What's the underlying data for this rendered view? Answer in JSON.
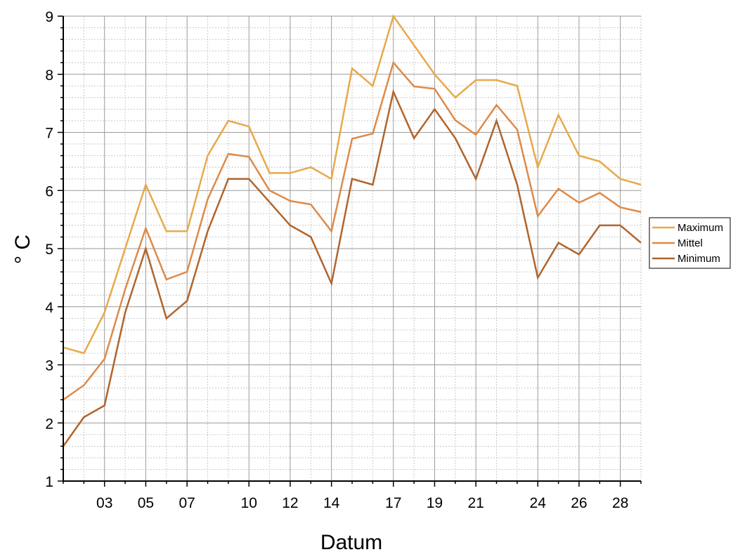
{
  "chart_data": {
    "type": "line",
    "title": "",
    "xlabel": "Datum",
    "ylabel": "° C",
    "x": [
      1,
      2,
      3,
      4,
      5,
      6,
      7,
      8,
      9,
      10,
      11,
      12,
      13,
      14,
      15,
      16,
      17,
      18,
      19,
      20,
      21,
      22,
      23,
      24,
      25,
      26,
      27,
      28,
      29
    ],
    "xlim": [
      1,
      29
    ],
    "ylim": [
      1,
      9
    ],
    "x_tick_labels": [
      {
        "x": 3,
        "label": "03"
      },
      {
        "x": 5,
        "label": "05"
      },
      {
        "x": 7,
        "label": "07"
      },
      {
        "x": 10,
        "label": "10"
      },
      {
        "x": 12,
        "label": "12"
      },
      {
        "x": 14,
        "label": "14"
      },
      {
        "x": 17,
        "label": "17"
      },
      {
        "x": 19,
        "label": "19"
      },
      {
        "x": 21,
        "label": "21"
      },
      {
        "x": 24,
        "label": "24"
      },
      {
        "x": 26,
        "label": "26"
      },
      {
        "x": 28,
        "label": "28"
      }
    ],
    "y_ticks": [
      1,
      2,
      3,
      4,
      5,
      6,
      7,
      8,
      9
    ],
    "grid": true,
    "legend_position": "right",
    "series": [
      {
        "name": "Maximum",
        "color": "#E8A94A",
        "values": [
          3.3,
          3.2,
          3.9,
          5.0,
          6.1,
          5.3,
          5.3,
          6.6,
          7.2,
          7.1,
          6.3,
          6.3,
          6.4,
          6.2,
          8.1,
          7.8,
          9.0,
          8.5,
          8.0,
          7.6,
          7.9,
          7.9,
          7.8,
          6.4,
          7.3,
          6.6,
          6.5,
          6.2,
          6.1
        ]
      },
      {
        "name": "Mittel",
        "color": "#DE8A48",
        "values": [
          2.4,
          2.65,
          3.1,
          4.3,
          5.35,
          4.47,
          4.6,
          5.85,
          6.63,
          6.58,
          6.0,
          5.82,
          5.76,
          5.3,
          6.89,
          6.98,
          8.2,
          7.79,
          7.75,
          7.21,
          6.96,
          7.47,
          7.05,
          5.56,
          6.03,
          5.79,
          5.96,
          5.71,
          5.63
        ]
      },
      {
        "name": "Minimum",
        "color": "#B0652D",
        "values": [
          1.6,
          2.1,
          2.3,
          3.9,
          5.0,
          3.8,
          4.1,
          5.3,
          6.2,
          6.2,
          5.8,
          5.4,
          5.2,
          4.4,
          6.2,
          6.1,
          7.7,
          6.9,
          7.4,
          6.9,
          6.2,
          7.2,
          6.1,
          4.5,
          5.1,
          4.9,
          5.4,
          5.4,
          5.1
        ]
      }
    ]
  }
}
